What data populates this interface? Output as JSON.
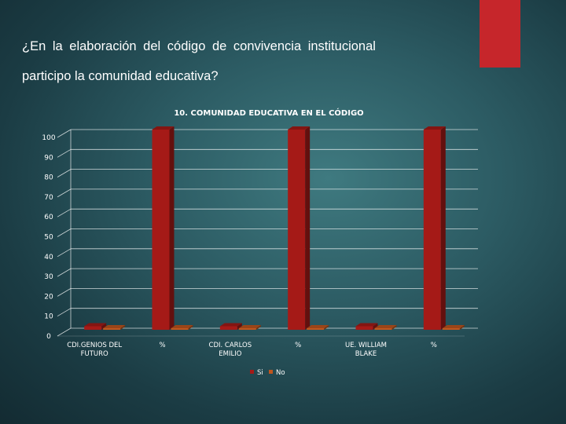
{
  "slide": {
    "title_line1": "¿En la elaboración del código de convivencia institucional",
    "title_line2": "participo la comunidad educativa?",
    "accent_color": "#c6262b"
  },
  "chart_data": {
    "type": "bar",
    "title": "10. COMUNIDAD EDUCATIVA EN EL CÓDIGO",
    "categories": [
      "CDI.GENIOS DEL FUTURO",
      "%",
      "CDI. CARLOS EMILIO",
      "%",
      "UE. WILLIAM BLAKE",
      "%"
    ],
    "series": [
      {
        "name": "Si",
        "values": [
          1,
          100,
          1,
          100,
          1,
          100
        ],
        "color": "#a51a17"
      },
      {
        "name": "No",
        "values": [
          0,
          0,
          0,
          0,
          0,
          0
        ],
        "color": "#c0561e"
      }
    ],
    "yticks": [
      0,
      10,
      20,
      30,
      40,
      50,
      60,
      70,
      80,
      90,
      100
    ],
    "ylim": [
      0,
      100
    ],
    "grid": true,
    "legend_position": "bottom"
  }
}
